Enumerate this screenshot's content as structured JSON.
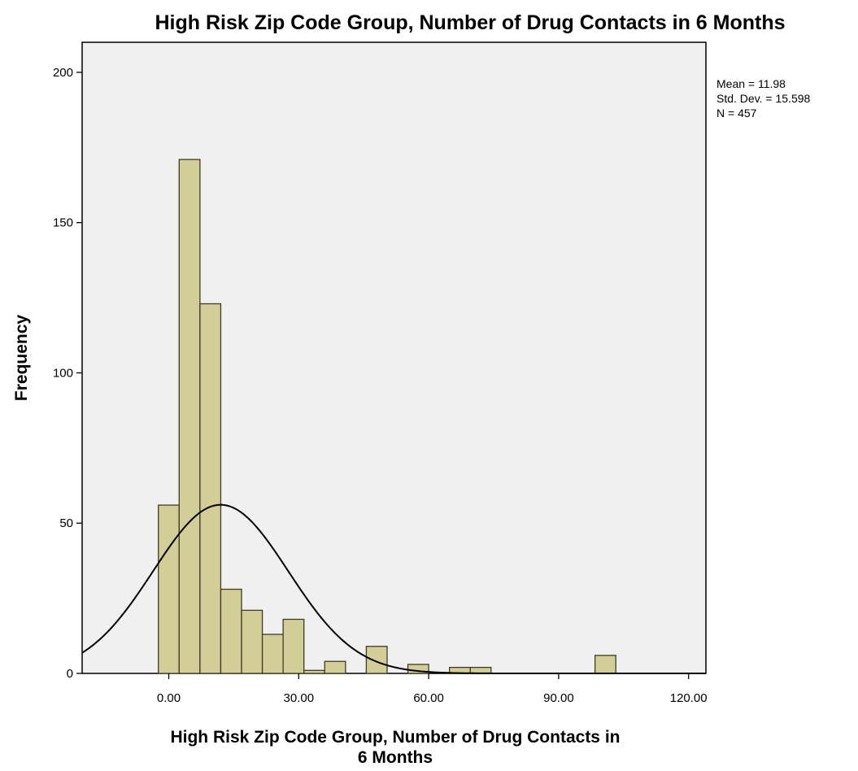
{
  "chart_data": {
    "type": "histogram",
    "title": "High Risk Zip Code Group, Number of Drug Contacts in 6 Months",
    "xlabel_lines": [
      "High Risk Zip Code Group, Number of Drug Contacts in",
      "6 Months"
    ],
    "ylabel": "Frequency",
    "xlim": [
      -20,
      124
    ],
    "ylim": [
      0,
      210
    ],
    "xticks": [
      0,
      30,
      60,
      90,
      120
    ],
    "xtick_labels": [
      "0.00",
      "30.00",
      "60.00",
      "90.00",
      "120.00"
    ],
    "yticks": [
      0,
      50,
      100,
      150,
      200
    ],
    "ytick_labels": [
      "0",
      "50",
      "100",
      "150",
      "200"
    ],
    "bin_width": 4.8,
    "bins": [
      {
        "start": -2.4,
        "count": 56
      },
      {
        "start": 2.4,
        "count": 171
      },
      {
        "start": 7.2,
        "count": 123
      },
      {
        "start": 12.0,
        "count": 28
      },
      {
        "start": 16.8,
        "count": 21
      },
      {
        "start": 21.6,
        "count": 13
      },
      {
        "start": 26.4,
        "count": 18
      },
      {
        "start": 31.2,
        "count": 1
      },
      {
        "start": 36.0,
        "count": 4
      },
      {
        "start": 40.8,
        "count": 0
      },
      {
        "start": 45.6,
        "count": 9
      },
      {
        "start": 50.4,
        "count": 0
      },
      {
        "start": 55.2,
        "count": 3
      },
      {
        "start": 60.0,
        "count": 0
      },
      {
        "start": 64.8,
        "count": 2
      },
      {
        "start": 69.6,
        "count": 2
      },
      {
        "start": 74.4,
        "count": 0
      },
      {
        "start": 79.2,
        "count": 0
      },
      {
        "start": 84.0,
        "count": 0
      },
      {
        "start": 88.8,
        "count": 0
      },
      {
        "start": 93.6,
        "count": 0
      },
      {
        "start": 98.4,
        "count": 6
      }
    ],
    "normal_curve": {
      "mean": 11.98,
      "std_dev": 15.598,
      "n": 457
    },
    "stats": [
      "Mean = 11.98",
      "Std. Dev. = 15.598",
      "N = 457"
    ],
    "grid": false,
    "colors": {
      "plot_background": "#f0f0f0",
      "bar_fill": "#d3ce97",
      "bar_stroke": "#3c3c28",
      "curve": "#000000"
    }
  }
}
